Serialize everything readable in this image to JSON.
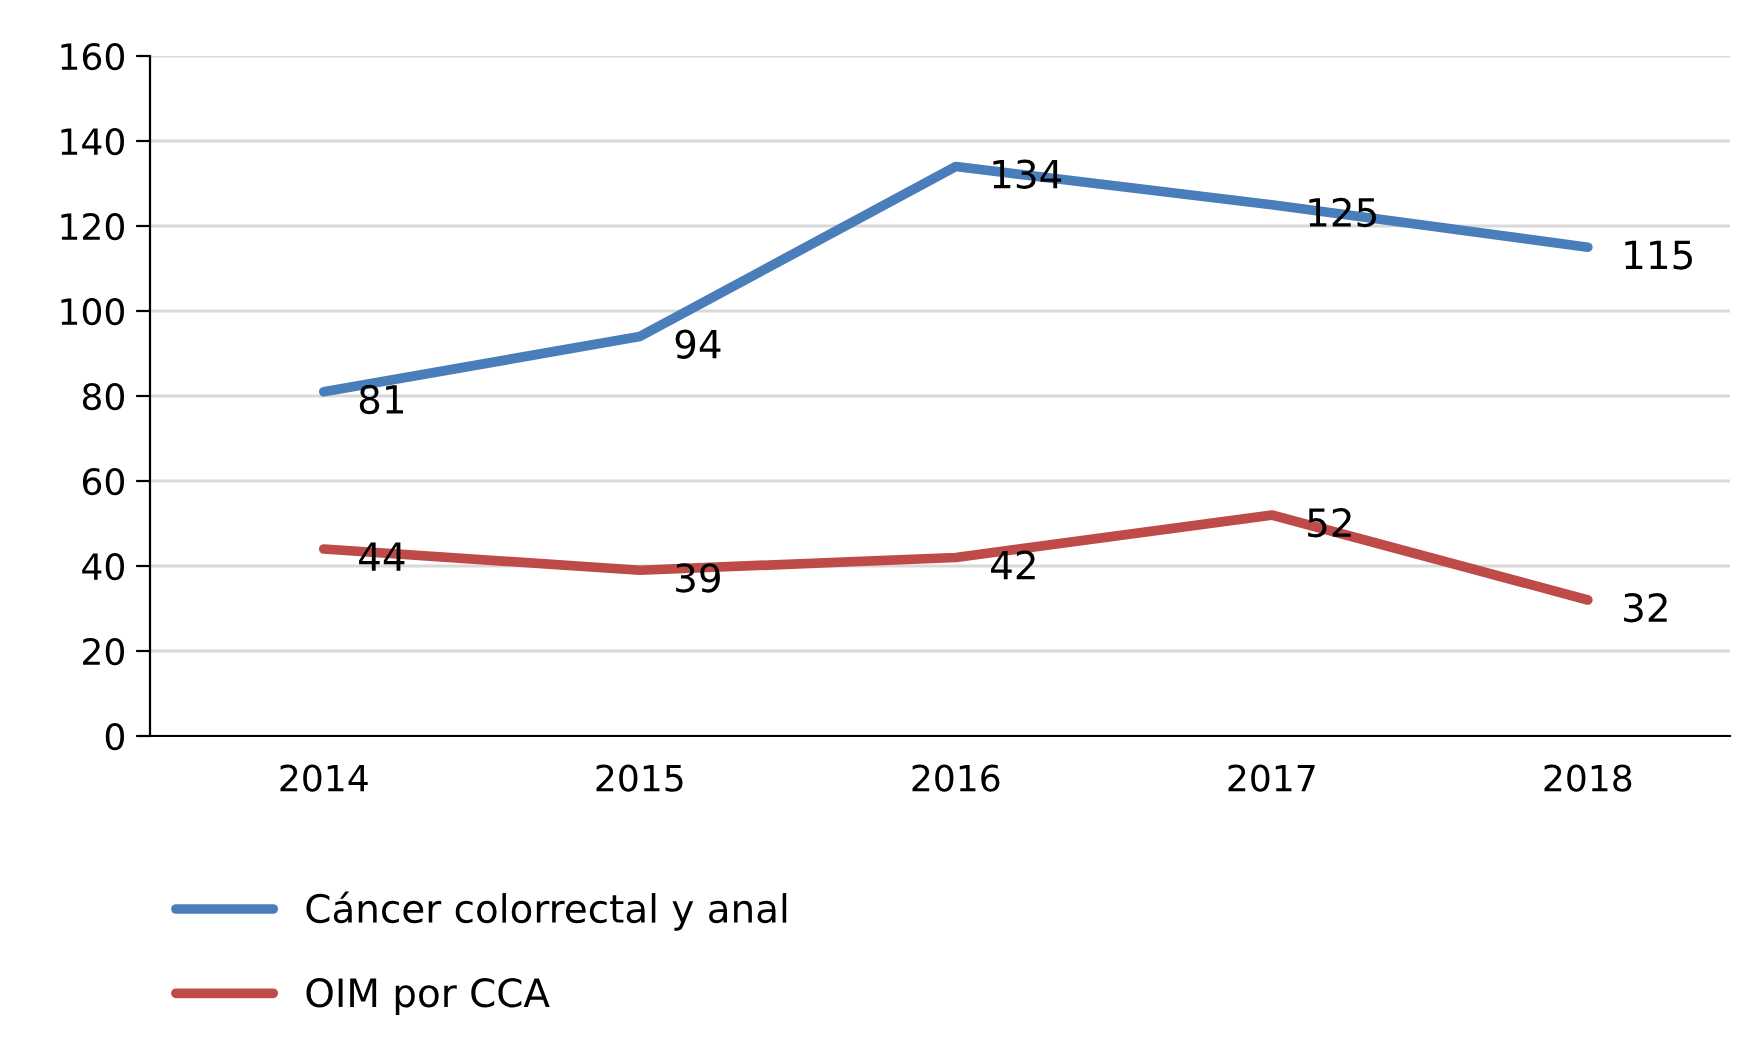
{
  "chart_data": {
    "type": "line",
    "categories": [
      "2014",
      "2015",
      "2016",
      "2017",
      "2018"
    ],
    "series": [
      {
        "name": "Cáncer colorrectal y anal",
        "color": "#4a7ebb",
        "values": [
          81,
          94,
          134,
          125,
          115
        ]
      },
      {
        "name": "OIM por CCA",
        "color": "#be4b48",
        "values": [
          44,
          39,
          42,
          52,
          32
        ]
      }
    ],
    "ylim": [
      0,
      160
    ],
    "yticks": [
      0,
      20,
      40,
      60,
      80,
      100,
      120,
      140,
      160
    ],
    "grid": "y",
    "legend": "bottom left",
    "data_labels": true,
    "marker": "none",
    "line_style": "solid"
  }
}
